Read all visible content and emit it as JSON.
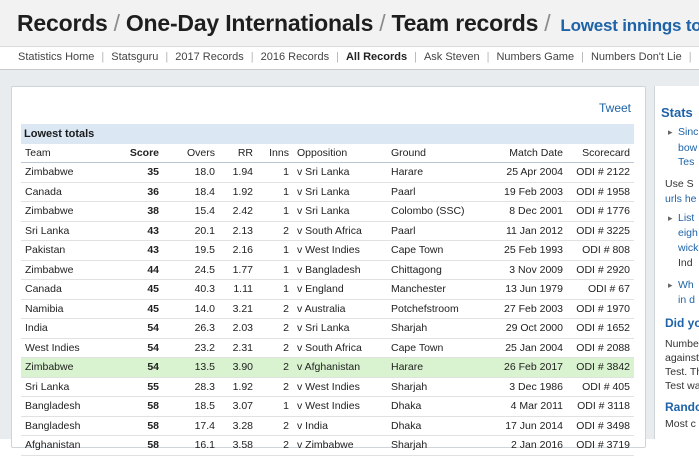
{
  "header": {
    "crumb1": "Records",
    "crumb2": "One-Day Internationals",
    "crumb3": "Team records",
    "tail": "Lowest innings totals"
  },
  "subnav": [
    "Statistics Home",
    "Statsguru",
    "2017 Records",
    "2016 Records",
    "All Records",
    "Ask Steven",
    "Numbers Game",
    "Numbers Don't Lie",
    "It Figu"
  ],
  "tweet_label": "Tweet",
  "table": {
    "caption": "Lowest totals",
    "columns": [
      "Team",
      "Score",
      "Overs",
      "RR",
      "Inns",
      "Opposition",
      "Ground",
      "Match Date",
      "Scorecard"
    ],
    "rows": [
      [
        "Zimbabwe",
        "35",
        "18.0",
        "1.94",
        "1",
        "v Sri Lanka",
        "Harare",
        "25 Apr 2004",
        "ODI # 2122"
      ],
      [
        "Canada",
        "36",
        "18.4",
        "1.92",
        "1",
        "v Sri Lanka",
        "Paarl",
        "19 Feb 2003",
        "ODI # 1958"
      ],
      [
        "Zimbabwe",
        "38",
        "15.4",
        "2.42",
        "1",
        "v Sri Lanka",
        "Colombo (SSC)",
        "8 Dec 2001",
        "ODI # 1776"
      ],
      [
        "Sri Lanka",
        "43",
        "20.1",
        "2.13",
        "2",
        "v South Africa",
        "Paarl",
        "11 Jan 2012",
        "ODI # 3225"
      ],
      [
        "Pakistan",
        "43",
        "19.5",
        "2.16",
        "1",
        "v West Indies",
        "Cape Town",
        "25 Feb 1993",
        "ODI # 808"
      ],
      [
        "Zimbabwe",
        "44",
        "24.5",
        "1.77",
        "1",
        "v Bangladesh",
        "Chittagong",
        "3 Nov 2009",
        "ODI # 2920"
      ],
      [
        "Canada",
        "45",
        "40.3",
        "1.11",
        "1",
        "v England",
        "Manchester",
        "13 Jun 1979",
        "ODI # 67"
      ],
      [
        "Namibia",
        "45",
        "14.0",
        "3.21",
        "2",
        "v Australia",
        "Potchefstroom",
        "27 Feb 2003",
        "ODI # 1970"
      ],
      [
        "India",
        "54",
        "26.3",
        "2.03",
        "2",
        "v Sri Lanka",
        "Sharjah",
        "29 Oct 2000",
        "ODI # 1652"
      ],
      [
        "West Indies",
        "54",
        "23.2",
        "2.31",
        "2",
        "v South Africa",
        "Cape Town",
        "25 Jan 2004",
        "ODI # 2088"
      ],
      [
        "Zimbabwe",
        "54",
        "13.5",
        "3.90",
        "2",
        "v Afghanistan",
        "Harare",
        "26 Feb 2017",
        "ODI # 3842"
      ],
      [
        "Sri Lanka",
        "55",
        "28.3",
        "1.92",
        "2",
        "v West Indies",
        "Sharjah",
        "3 Dec 1986",
        "ODI # 405"
      ],
      [
        "Bangladesh",
        "58",
        "18.5",
        "3.07",
        "1",
        "v West Indies",
        "Dhaka",
        "4 Mar 2011",
        "ODI # 3118"
      ],
      [
        "Bangladesh",
        "58",
        "17.4",
        "3.28",
        "2",
        "v India",
        "Dhaka",
        "17 Jun 2014",
        "ODI # 3498"
      ],
      [
        "Afghanistan",
        "58",
        "16.1",
        "3.58",
        "2",
        "v Zimbabwe",
        "Sharjah",
        "2 Jan 2016",
        "ODI # 3719"
      ]
    ],
    "highlight_row": 10,
    "highlight_color": "#d9f2cf"
  },
  "sidebar": {
    "title": "Stats",
    "items": [
      {
        "text": "Sinc",
        "style": "normal"
      },
      {
        "text": "bow",
        "style": "normal"
      },
      {
        "text": "Tes",
        "style": "normal"
      },
      {
        "text": "Use S",
        "style": "normal"
      },
      {
        "text": "urls he",
        "style": "normal"
      },
      {
        "text": "List",
        "style": "normal"
      },
      {
        "text": "eigh",
        "style": "normal"
      },
      {
        "text": "wick",
        "style": "normal"
      },
      {
        "text": "Ind",
        "style": "normal"
      },
      {
        "text": "Wh",
        "style": "normal"
      },
      {
        "text": "in d",
        "style": "normal"
      },
      {
        "text": "Did yo",
        "style": "heading"
      },
      {
        "text": "Number",
        "style": "normal"
      },
      {
        "text": "against",
        "style": "normal"
      },
      {
        "text": "Test. Th",
        "style": "normal"
      },
      {
        "text": "Test wa",
        "style": "normal"
      },
      {
        "text": "Rando",
        "style": "heading"
      },
      {
        "text": "Most c",
        "style": "normal"
      }
    ]
  },
  "colors": {
    "link": "#1e63a8",
    "caption_bg": "#dbe7f3",
    "page_bg": "#e9ecef"
  }
}
